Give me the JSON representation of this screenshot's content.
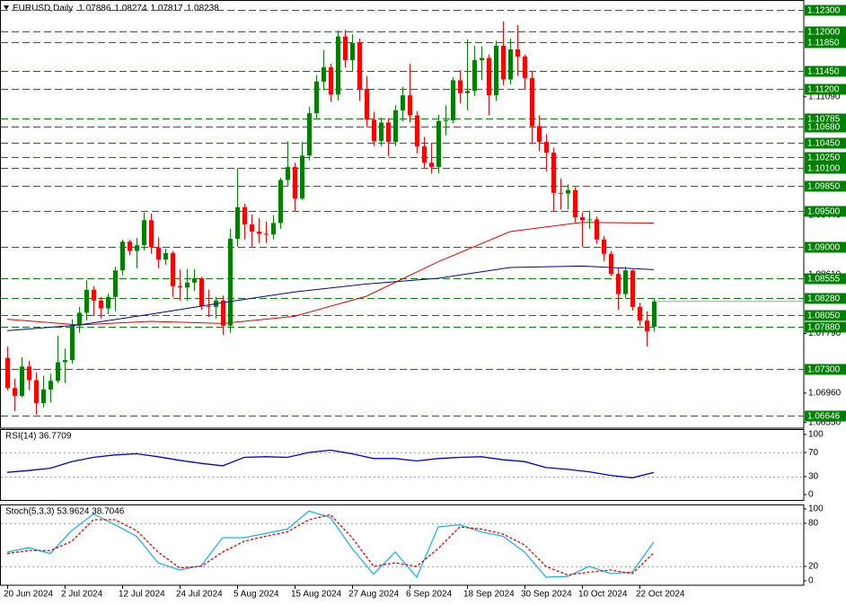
{
  "chart_data": [
    {
      "type": "candlestick",
      "title": "EURUSD,Daily",
      "categories": [
        "20 Jun 2024",
        null,
        null,
        null,
        null,
        null,
        null,
        null,
        "2 Jul 2024",
        null,
        null,
        null,
        null,
        null,
        null,
        null,
        "12 Jul 2024",
        null,
        null,
        null,
        null,
        null,
        null,
        null,
        "24 Jul 2024",
        null,
        null,
        null,
        null,
        null,
        null,
        null,
        "5 Aug 2024",
        null,
        null,
        null,
        null,
        null,
        null,
        null,
        "15 Aug 2024",
        null,
        null,
        null,
        null,
        null,
        null,
        null,
        "27 Aug 2024",
        null,
        null,
        null,
        null,
        null,
        null,
        null,
        "6 Sep 2024",
        null,
        null,
        null,
        null,
        null,
        null,
        null,
        "18 Sep 2024",
        null,
        null,
        null,
        null,
        null,
        null,
        null,
        "30 Sep 2024",
        null,
        null,
        null,
        null,
        null,
        null,
        null,
        "10 Oct 2024",
        null,
        null,
        null,
        null,
        null,
        null,
        null,
        "22 Oct 2024",
        null,
        null
      ],
      "open": [
        1.0745,
        1.0703,
        1.0692,
        1.0733,
        1.0714,
        1.0682,
        1.0701,
        1.0713,
        1.0739,
        1.0742,
        1.079,
        1.0808,
        1.084,
        1.0825,
        1.0814,
        1.083,
        1.0867,
        1.0907,
        1.0894,
        1.0902,
        1.0937,
        1.0899,
        1.0882,
        1.0891,
        1.0845,
        1.0843,
        1.085,
        1.0856,
        1.0817,
        1.0816,
        1.0825,
        1.079,
        1.0911,
        1.0955,
        1.0931,
        1.0921,
        1.0918,
        1.0917,
        1.0933,
        1.0993,
        1.1011,
        1.0967,
        1.1027,
        1.1086,
        1.113,
        1.115,
        1.1112,
        1.1193,
        1.116,
        1.1184,
        1.112,
        1.1077,
        1.1047,
        1.1073,
        1.1046,
        1.109,
        1.1111,
        1.1083,
        1.104,
        1.1017,
        1.1011,
        1.1075,
        1.1076,
        1.1132,
        1.1114,
        1.1117,
        1.116,
        1.1163,
        1.1111,
        1.118,
        1.1133,
        1.1175,
        1.1165,
        1.1135,
        1.1068,
        1.1046,
        1.1031,
        1.0975,
        1.0974,
        1.0979,
        1.0941,
        1.0937,
        1.0938,
        1.091,
        1.089,
        1.0862,
        1.0834,
        1.0867,
        1.0816,
        1.0797,
        1.07886
      ],
      "high": [
        1.0761,
        1.0716,
        1.0746,
        1.0741,
        1.0725,
        1.072,
        1.0723,
        1.0776,
        1.0758,
        1.0799,
        1.0816,
        1.0853,
        1.0845,
        1.083,
        1.0835,
        1.0872,
        1.091,
        1.091,
        1.0912,
        1.0948,
        1.0946,
        1.0913,
        1.0897,
        1.0894,
        1.0868,
        1.0869,
        1.0869,
        1.0858,
        1.084,
        1.083,
        1.0832,
        1.0925,
        1.1009,
        1.096,
        1.0945,
        1.094,
        1.0935,
        1.0944,
        1.0996,
        1.1047,
        1.1017,
        1.1046,
        1.1095,
        1.1139,
        1.1174,
        1.1155,
        1.1201,
        1.1202,
        1.1196,
        1.119,
        1.1138,
        1.1088,
        1.108,
        1.1079,
        1.1097,
        1.1123,
        1.1155,
        1.1089,
        1.1053,
        1.1045,
        1.1084,
        1.1097,
        1.1136,
        1.1146,
        1.1189,
        1.118,
        1.1179,
        1.1168,
        1.1187,
        1.1214,
        1.119,
        1.1209,
        1.1168,
        1.1145,
        1.1083,
        1.1057,
        1.1038,
        1.0995,
        1.0987,
        1.0983,
        1.0948,
        1.095,
        1.0942,
        1.0915,
        1.0894,
        1.087,
        1.0872,
        1.0868,
        1.0822,
        1.081,
        1.08274
      ],
      "low": [
        1.07,
        1.0671,
        1.069,
        1.07,
        1.0666,
        1.0676,
        1.0683,
        1.071,
        1.071,
        1.0737,
        1.078,
        1.0797,
        1.0804,
        1.08,
        1.0806,
        1.081,
        1.086,
        1.0888,
        1.087,
        1.0895,
        1.089,
        1.087,
        1.0875,
        1.083,
        1.0825,
        1.0825,
        1.0838,
        1.0812,
        1.0802,
        1.08,
        1.0777,
        1.078,
        1.09,
        1.091,
        1.09,
        1.0905,
        1.0905,
        1.091,
        1.0925,
        1.0985,
        1.095,
        1.0965,
        1.102,
        1.1079,
        1.1118,
        1.1102,
        1.1104,
        1.115,
        1.1145,
        1.1103,
        1.1067,
        1.104,
        1.104,
        1.1026,
        1.104,
        1.1075,
        1.1073,
        1.103,
        1.101,
        1.1002,
        1.1002,
        1.1055,
        1.1072,
        1.11,
        1.109,
        1.111,
        1.1132,
        1.1083,
        1.1103,
        1.1125,
        1.1126,
        1.1138,
        1.112,
        1.1043,
        1.1033,
        1.1005,
        1.095,
        1.0952,
        1.0952,
        1.0934,
        1.09,
        1.0925,
        1.0904,
        1.088,
        1.0859,
        1.0812,
        1.0828,
        1.0811,
        1.079,
        1.0761,
        1.07817
      ],
      "close": [
        1.0703,
        1.0692,
        1.0733,
        1.0714,
        1.0682,
        1.0701,
        1.0713,
        1.0739,
        1.0742,
        1.079,
        1.0808,
        1.084,
        1.0825,
        1.0814,
        1.083,
        1.0867,
        1.0907,
        1.0894,
        1.0902,
        1.0937,
        1.0899,
        1.0882,
        1.0891,
        1.0845,
        1.0843,
        1.085,
        1.0856,
        1.0817,
        1.0816,
        1.0825,
        1.079,
        1.0911,
        1.0955,
        1.0931,
        1.0921,
        1.0918,
        1.0917,
        1.0933,
        1.0993,
        1.1011,
        1.0967,
        1.1027,
        1.1086,
        1.113,
        1.115,
        1.1112,
        1.1193,
        1.116,
        1.1184,
        1.112,
        1.1077,
        1.1047,
        1.1073,
        1.1046,
        1.109,
        1.1111,
        1.1083,
        1.104,
        1.1017,
        1.1011,
        1.1075,
        1.1076,
        1.1132,
        1.1114,
        1.1117,
        1.116,
        1.1163,
        1.1111,
        1.118,
        1.1133,
        1.1175,
        1.1165,
        1.1135,
        1.1068,
        1.1046,
        1.1031,
        1.0975,
        1.0974,
        1.0979,
        1.0941,
        1.0937,
        1.0938,
        1.091,
        1.089,
        1.0862,
        1.0834,
        1.0867,
        1.0816,
        1.0797,
        1.0782,
        1.08238
      ],
      "up_color": "#008000",
      "down_color": "#ff0000",
      "series": [
        {
          "color": "#e00000",
          "x": [
            0,
            10,
            20,
            30,
            40,
            50,
            60,
            70,
            80,
            90
          ],
          "values": [
            1.0799,
            1.0791,
            1.0796,
            1.0793,
            1.0803,
            1.0831,
            1.0879,
            1.0921,
            1.0934,
            1.0933
          ]
        },
        {
          "color": "#0000a0",
          "x": [
            0,
            10,
            20,
            30,
            40,
            50,
            60,
            70,
            80,
            90
          ],
          "values": [
            1.0783,
            1.0791,
            1.0806,
            1.0822,
            1.0837,
            1.0848,
            1.0856,
            1.0871,
            1.0873,
            1.0868
          ]
        }
      ],
      "ylim": [
        1.06471,
        1.12438
      ],
      "yticks": [
        {
          "value": 1.1109,
          "label": "1.11090"
        },
        {
          "value": 1.0944,
          "label": "1.09440"
        },
        {
          "value": 1.0861,
          "label": "1.08610"
        },
        {
          "value": 1.0779,
          "label": "1.07790"
        },
        {
          "value": 1.0696,
          "label": "1.06960"
        },
        {
          "value": 1.0655,
          "label": "1.06550"
        }
      ],
      "levels": [
        {
          "value": 1.123,
          "label": "1.12300"
        },
        {
          "value": 1.12,
          "label": "1.12000"
        },
        {
          "value": 1.1185,
          "label": "1.11850"
        },
        {
          "value": 1.1145,
          "label": "1.11450"
        },
        {
          "value": 1.112,
          "label": "1.11200"
        },
        {
          "value": 1.10785,
          "label": "1.10785"
        },
        {
          "value": 1.1068,
          "label": "1.10680"
        },
        {
          "value": 1.1045,
          "label": "1.10450"
        },
        {
          "value": 1.1025,
          "label": "1.10250"
        },
        {
          "value": 1.101,
          "label": "1.10100"
        },
        {
          "value": 1.0985,
          "label": "1.09850"
        },
        {
          "value": 1.095,
          "label": "1.09500"
        },
        {
          "value": 1.09,
          "label": "1.09000"
        },
        {
          "value": 1.08555,
          "label": "1.08555"
        },
        {
          "value": 1.0828,
          "label": "1.08280"
        },
        {
          "value": 1.0805,
          "label": "1.08050"
        },
        {
          "value": 1.0788,
          "label": "1.07880"
        },
        {
          "value": 1.073,
          "label": "1.07300"
        },
        {
          "value": 1.06646,
          "label": "1.06646"
        }
      ],
      "level_color": "#008000"
    },
    {
      "type": "line",
      "title": "RSI(14) 36.7709",
      "x": [
        0,
        3,
        6,
        9,
        12,
        15,
        18,
        21,
        24,
        27,
        30,
        33,
        36,
        39,
        42,
        45,
        48,
        51,
        54,
        57,
        60,
        63,
        66,
        69,
        72,
        75,
        78,
        81,
        84,
        87,
        90
      ],
      "series": [
        {
          "color": "#0000cd",
          "values": [
            37,
            40,
            44,
            55,
            62,
            66,
            68,
            63,
            57,
            52,
            48,
            62,
            63,
            62,
            70,
            74,
            68,
            60,
            60,
            56,
            60,
            62,
            63,
            58,
            55,
            45,
            42,
            38,
            32,
            28,
            36.7709
          ]
        }
      ],
      "ylim": [
        -10.4,
        109
      ],
      "yticks": [
        0,
        30,
        70,
        100
      ],
      "levels": [
        30,
        70
      ]
    },
    {
      "type": "line",
      "title": "Stoch(5,3,3) 53.9624 38.7046",
      "x": [
        0,
        3,
        6,
        9,
        12,
        15,
        18,
        21,
        24,
        27,
        30,
        33,
        36,
        39,
        42,
        45,
        48,
        51,
        54,
        57,
        60,
        63,
        66,
        69,
        72,
        75,
        78,
        81,
        84,
        87,
        90
      ],
      "series": [
        {
          "color": "#20b2e0",
          "values": [
            40,
            46,
            38,
            70,
            93,
            78,
            62,
            25,
            15,
            21,
            60,
            60,
            66,
            72,
            97,
            88,
            45,
            9,
            40,
            5,
            75,
            78,
            68,
            62,
            40,
            5,
            6,
            20,
            10,
            12,
            53.9624
          ]
        },
        {
          "color": "#e00000",
          "dash": true,
          "values": [
            38,
            42,
            42,
            55,
            85,
            85,
            70,
            40,
            18,
            20,
            40,
            55,
            62,
            68,
            85,
            92,
            60,
            20,
            25,
            20,
            45,
            75,
            72,
            65,
            50,
            20,
            8,
            12,
            15,
            10,
            38.7046
          ]
        }
      ],
      "ylim": [
        -6.25,
        106.25
      ],
      "yticks": [
        0,
        20,
        80,
        100
      ],
      "levels": [
        20,
        80
      ]
    }
  ]
}
